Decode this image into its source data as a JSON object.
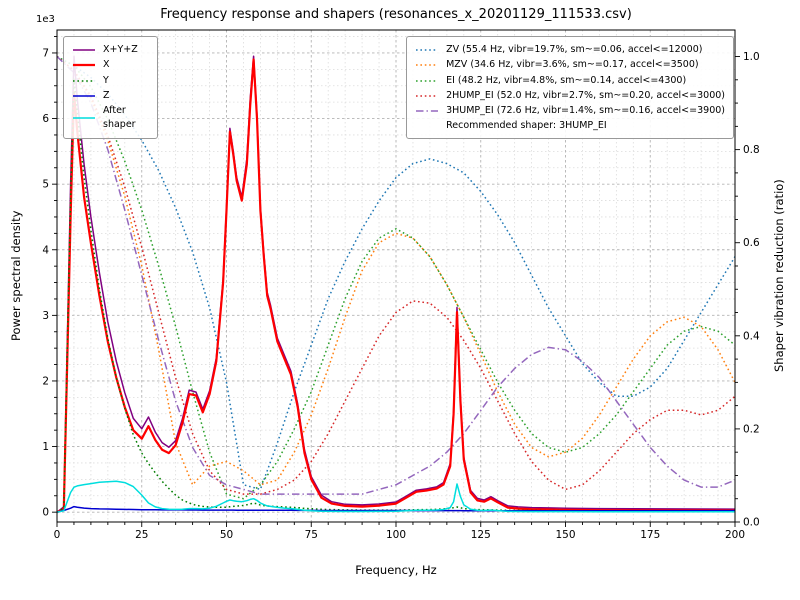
{
  "chart_data": {
    "type": "line",
    "title": "Frequency response and shapers (resonances_x_20201129_111533.csv)",
    "xlabel": "Frequency, Hz",
    "ylabel_left": "Power spectral density",
    "ylabel_right": "Shaper vibration reduction (ratio)",
    "y_left_offset_text": "1e3",
    "x_range": [
      0,
      200
    ],
    "x_major_step": 25,
    "x_minor_step": 5,
    "y_left_range": [
      -150,
      7350
    ],
    "y_left_major_step": 1000,
    "y_left_minor_step": 250,
    "y_right_range": [
      0,
      1.057
    ],
    "y_right_major_step": 0.2,
    "y_right_minor_step": 0.05,
    "grid": "major+minor",
    "legend_psd_position": "upper-left",
    "legend_shaper_position": "upper-right",
    "psd": {
      "x": [
        0,
        2,
        4,
        5,
        6,
        8,
        10,
        12.5,
        15,
        17.5,
        20,
        22.5,
        25,
        27,
        29,
        31,
        33,
        35,
        37,
        39,
        41,
        43,
        45,
        47,
        49,
        50,
        51,
        52,
        53,
        54.5,
        56,
        57,
        58,
        59,
        60,
        61,
        62,
        63,
        65,
        67,
        69,
        71,
        73,
        75,
        78,
        81,
        85,
        90,
        95,
        100,
        103,
        106,
        109,
        112,
        114,
        116,
        117,
        118,
        119,
        120,
        122,
        124,
        126,
        128,
        130,
        133,
        136,
        140,
        145,
        150,
        160,
        170,
        180,
        190,
        200
      ],
      "series": [
        {
          "name": "X+Y+Z",
          "color": "#800080",
          "style": "solid",
          "width": 1.5,
          "values": [
            0,
            80,
            5000,
            6950,
            6300,
            5300,
            4500,
            3650,
            2900,
            2300,
            1820,
            1430,
            1270,
            1450,
            1220,
            1060,
            990,
            1090,
            1420,
            1860,
            1830,
            1570,
            1850,
            2350,
            3550,
            4650,
            5850,
            5500,
            5100,
            4800,
            5380,
            6300,
            6950,
            6050,
            4650,
            3950,
            3350,
            3150,
            2650,
            2400,
            2150,
            1650,
            950,
            540,
            260,
            160,
            120,
            110,
            125,
            155,
            245,
            335,
            355,
            385,
            450,
            740,
            1550,
            3120,
            1750,
            840,
            330,
            210,
            185,
            235,
            175,
            95,
            80,
            70,
            65,
            60,
            55,
            52,
            50,
            48,
            46
          ]
        },
        {
          "name": "X",
          "color": "#ff0000",
          "style": "solid",
          "width": 2.2,
          "values": [
            0,
            50,
            4500,
            6400,
            5800,
            4800,
            4100,
            3300,
            2600,
            2050,
            1600,
            1250,
            1120,
            1310,
            1100,
            950,
            900,
            1020,
            1360,
            1800,
            1780,
            1520,
            1800,
            2300,
            3500,
            4600,
            5800,
            5450,
            5050,
            4750,
            5300,
            6200,
            6900,
            6000,
            4600,
            3900,
            3300,
            3100,
            2600,
            2350,
            2100,
            1600,
            900,
            500,
            220,
            130,
            95,
            85,
            100,
            130,
            220,
            310,
            330,
            360,
            420,
            700,
            1500,
            3050,
            1700,
            800,
            300,
            180,
            160,
            210,
            150,
            70,
            55,
            45,
            40,
            35,
            30,
            28,
            26,
            25,
            24
          ]
        },
        {
          "name": "Y",
          "color": "#007d00",
          "style": "dotted",
          "width": 1.5,
          "values": [
            0,
            60,
            4800,
            6600,
            6100,
            5100,
            4300,
            3400,
            2650,
            2050,
            1580,
            1180,
            900,
            740,
            600,
            470,
            360,
            260,
            185,
            140,
            105,
            88,
            78,
            74,
            74,
            76,
            82,
            88,
            93,
            98,
            112,
            126,
            138,
            128,
            108,
            100,
            95,
            90,
            84,
            79,
            74,
            68,
            58,
            52,
            44,
            39,
            34,
            31,
            31,
            32,
            34,
            37,
            39,
            44,
            49,
            58,
            68,
            78,
            68,
            54,
            44,
            39,
            37,
            35,
            33,
            29,
            27,
            26,
            24,
            23,
            22,
            21,
            20,
            20,
            19
          ]
        },
        {
          "name": "Z",
          "color": "#0000d0",
          "style": "solid",
          "width": 1.5,
          "values": [
            0,
            25,
            60,
            85,
            75,
            62,
            55,
            50,
            48,
            45,
            42,
            40,
            38,
            37,
            36,
            35,
            35,
            34,
            34,
            33,
            33,
            32,
            32,
            32,
            31,
            31,
            31,
            31,
            30,
            30,
            30,
            30,
            30,
            30,
            29,
            29,
            29,
            29,
            28,
            28,
            28,
            27,
            27,
            27,
            26,
            26,
            26,
            25,
            25,
            25,
            25,
            24,
            24,
            24,
            24,
            24,
            24,
            24,
            24,
            23,
            23,
            23,
            23,
            23,
            22,
            22,
            22,
            22,
            21,
            21,
            21,
            20,
            20,
            20,
            20
          ]
        },
        {
          "name": "After shaper",
          "color": "#00dede",
          "style": "solid",
          "width": 1.5,
          "values": [
            0,
            20,
            300,
            380,
            400,
            420,
            435,
            455,
            465,
            470,
            450,
            390,
            260,
            140,
            80,
            55,
            45,
            42,
            45,
            55,
            55,
            50,
            60,
            90,
            140,
            165,
            185,
            175,
            165,
            160,
            175,
            195,
            205,
            180,
            140,
            115,
            95,
            88,
            72,
            62,
            55,
            42,
            28,
            20,
            14,
            12,
            10,
            10,
            11,
            13,
            20,
            28,
            30,
            33,
            40,
            70,
            160,
            430,
            240,
            110,
            45,
            28,
            25,
            32,
            24,
            12,
            10,
            9,
            8,
            8,
            7,
            7,
            7,
            7,
            7
          ]
        }
      ]
    },
    "shapers": {
      "x": [
        0,
        5,
        10,
        15,
        20,
        25,
        30,
        35,
        40,
        45,
        50,
        55,
        60,
        65,
        70,
        75,
        80,
        85,
        90,
        95,
        100,
        105,
        110,
        115,
        120,
        125,
        130,
        135,
        140,
        145,
        150,
        155,
        160,
        165,
        170,
        175,
        180,
        185,
        190,
        195,
        200
      ],
      "series": [
        {
          "name": "ZV (55.4 Hz, vibr=19.7%, sm~=0.06, accel<=12000)",
          "color": "#1f77b4",
          "style": "dotted",
          "width": 1.5,
          "values": [
            1.0,
            0.98,
            0.955,
            0.92,
            0.875,
            0.82,
            0.755,
            0.675,
            0.58,
            0.46,
            0.3,
            0.08,
            0.07,
            0.17,
            0.28,
            0.38,
            0.48,
            0.56,
            0.63,
            0.69,
            0.74,
            0.77,
            0.78,
            0.77,
            0.75,
            0.71,
            0.66,
            0.6,
            0.53,
            0.46,
            0.4,
            0.34,
            0.3,
            0.27,
            0.27,
            0.29,
            0.33,
            0.39,
            0.45,
            0.51,
            0.57
          ]
        },
        {
          "name": "MZV (34.6 Hz, vibr=3.6%, sm~=0.17, accel<=3500)",
          "color": "#ff7f0e",
          "style": "dotted",
          "width": 1.5,
          "values": [
            1.0,
            0.97,
            0.91,
            0.82,
            0.7,
            0.55,
            0.37,
            0.17,
            0.08,
            0.12,
            0.13,
            0.11,
            0.08,
            0.09,
            0.15,
            0.23,
            0.33,
            0.44,
            0.54,
            0.6,
            0.62,
            0.61,
            0.57,
            0.51,
            0.44,
            0.36,
            0.28,
            0.21,
            0.16,
            0.14,
            0.15,
            0.18,
            0.23,
            0.29,
            0.35,
            0.4,
            0.43,
            0.44,
            0.42,
            0.37,
            0.3
          ]
        },
        {
          "name": "EI (48.2 Hz, vibr=4.8%, sm~=0.14, accel<=4300)",
          "color": "#2ca02c",
          "style": "dotted",
          "width": 1.5,
          "values": [
            1.0,
            0.98,
            0.935,
            0.865,
            0.775,
            0.67,
            0.55,
            0.42,
            0.28,
            0.15,
            0.06,
            0.05,
            0.08,
            0.13,
            0.2,
            0.28,
            0.38,
            0.48,
            0.56,
            0.61,
            0.63,
            0.61,
            0.57,
            0.51,
            0.44,
            0.37,
            0.3,
            0.24,
            0.19,
            0.16,
            0.15,
            0.16,
            0.19,
            0.23,
            0.28,
            0.33,
            0.38,
            0.41,
            0.42,
            0.41,
            0.38
          ]
        },
        {
          "name": "2HUMP_EI (52.0 Hz, vibr=2.7%, sm~=0.20, accel<=3000)",
          "color": "#d62728",
          "style": "dotted",
          "width": 1.5,
          "values": [
            1.0,
            0.97,
            0.915,
            0.83,
            0.72,
            0.59,
            0.45,
            0.31,
            0.19,
            0.11,
            0.07,
            0.06,
            0.06,
            0.07,
            0.09,
            0.13,
            0.19,
            0.26,
            0.33,
            0.4,
            0.45,
            0.475,
            0.47,
            0.44,
            0.39,
            0.33,
            0.26,
            0.19,
            0.13,
            0.09,
            0.07,
            0.08,
            0.11,
            0.15,
            0.19,
            0.22,
            0.24,
            0.24,
            0.23,
            0.24,
            0.27
          ]
        },
        {
          "name": "3HUMP_EI (72.6 Hz, vibr=1.4%, sm~=0.16, accel<=3900)",
          "color": "#9467bd",
          "style": "dashdot",
          "width": 1.5,
          "values": [
            1.0,
            0.965,
            0.9,
            0.8,
            0.67,
            0.53,
            0.39,
            0.26,
            0.16,
            0.1,
            0.08,
            0.07,
            0.06,
            0.06,
            0.06,
            0.06,
            0.06,
            0.06,
            0.06,
            0.07,
            0.08,
            0.1,
            0.12,
            0.15,
            0.19,
            0.24,
            0.29,
            0.33,
            0.36,
            0.375,
            0.37,
            0.345,
            0.31,
            0.26,
            0.21,
            0.16,
            0.12,
            0.09,
            0.075,
            0.075,
            0.09
          ]
        }
      ],
      "recommended": "3HUMP_EI",
      "recommended_note": "Recommended shaper: 3HUMP_EI"
    }
  }
}
